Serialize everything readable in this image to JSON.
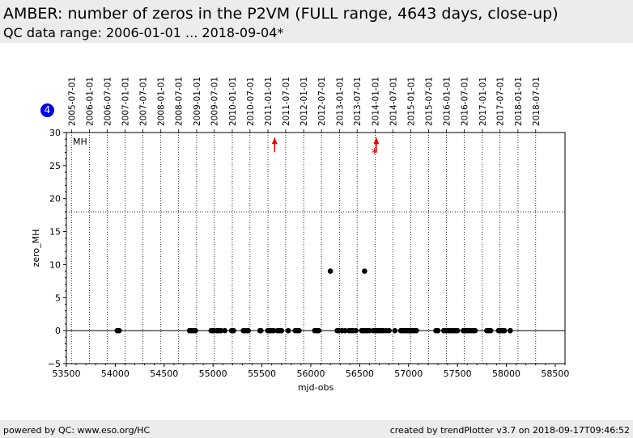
{
  "header": {
    "title": "AMBER: number of zeros in the P2VM (FULL range, 4643 days, close-up)",
    "subtitle": "QC data range: 2006-01-01 ... 2018-09-04*"
  },
  "badge": {
    "value": "4"
  },
  "footer": {
    "left": "powered by QC: www.eso.org/HC",
    "right": "created by trendPlotter v3.7 on 2018-09-17T09:46:52"
  },
  "colors": {
    "points": "#000000",
    "outliers": "#ee0000",
    "header_bg": "#ececec",
    "badge": "#0000ee"
  },
  "chart_data": {
    "type": "scatter",
    "xlabel": "mjd-obs",
    "ylabel": "zero_MH",
    "xlim": [
      53500,
      58600
    ],
    "ylim": [
      -5,
      30
    ],
    "x_ticks": [
      53500,
      54000,
      54500,
      55000,
      55500,
      56000,
      56500,
      57000,
      57500,
      58000,
      58500
    ],
    "y_ticks": [
      -5,
      0,
      5,
      10,
      15,
      20,
      25,
      30
    ],
    "reference_lines": [
      0,
      18
    ],
    "grid": "vertical dotted lines at date ticks",
    "panel_label": "MH",
    "date_ticks": [
      {
        "label": "2005-07-01",
        "mjd": 53552
      },
      {
        "label": "2006-01-01",
        "mjd": 53736
      },
      {
        "label": "2006-07-01",
        "mjd": 53917
      },
      {
        "label": "2007-01-01",
        "mjd": 54101
      },
      {
        "label": "2007-07-01",
        "mjd": 54282
      },
      {
        "label": "2008-01-01",
        "mjd": 54466
      },
      {
        "label": "2008-07-01",
        "mjd": 54648
      },
      {
        "label": "2009-01-01",
        "mjd": 54832
      },
      {
        "label": "2009-07-01",
        "mjd": 55013
      },
      {
        "label": "2010-01-01",
        "mjd": 55197
      },
      {
        "label": "2010-07-01",
        "mjd": 55378
      },
      {
        "label": "2011-01-01",
        "mjd": 55562
      },
      {
        "label": "2011-07-01",
        "mjd": 55743
      },
      {
        "label": "2012-01-01",
        "mjd": 55927
      },
      {
        "label": "2012-07-01",
        "mjd": 56109
      },
      {
        "label": "2013-01-01",
        "mjd": 56293
      },
      {
        "label": "2013-07-01",
        "mjd": 56474
      },
      {
        "label": "2014-01-01",
        "mjd": 56658
      },
      {
        "label": "2014-07-01",
        "mjd": 56839
      },
      {
        "label": "2015-01-01",
        "mjd": 57023
      },
      {
        "label": "2015-07-01",
        "mjd": 57204
      },
      {
        "label": "2016-01-01",
        "mjd": 57388
      },
      {
        "label": "2016-07-01",
        "mjd": 57570
      },
      {
        "label": "2017-01-01",
        "mjd": 57754
      },
      {
        "label": "2017-07-01",
        "mjd": 57935
      },
      {
        "label": "2018-01-01",
        "mjd": 58119
      },
      {
        "label": "2018-07-01",
        "mjd": 58300
      }
    ],
    "series": [
      {
        "points": [
          [
            54020,
            0
          ],
          [
            54030,
            0
          ],
          [
            54040,
            0
          ],
          [
            54760,
            0
          ],
          [
            54780,
            0
          ],
          [
            54800,
            0
          ],
          [
            54820,
            0
          ],
          [
            54980,
            0
          ],
          [
            54995,
            0
          ],
          [
            55010,
            0
          ],
          [
            55040,
            0
          ],
          [
            55060,
            0
          ],
          [
            55080,
            0
          ],
          [
            55120,
            0
          ],
          [
            55190,
            0
          ],
          [
            55210,
            0
          ],
          [
            55310,
            0
          ],
          [
            55330,
            0
          ],
          [
            55350,
            0
          ],
          [
            55360,
            0
          ],
          [
            55480,
            0
          ],
          [
            55490,
            0
          ],
          [
            55560,
            0
          ],
          [
            55580,
            0
          ],
          [
            55600,
            0
          ],
          [
            55620,
            0
          ],
          [
            55660,
            0
          ],
          [
            55680,
            0
          ],
          [
            55700,
            0
          ],
          [
            55770,
            0
          ],
          [
            55840,
            0
          ],
          [
            55860,
            0
          ],
          [
            55880,
            0
          ],
          [
            56040,
            0
          ],
          [
            56060,
            0
          ],
          [
            56080,
            0
          ],
          [
            56200,
            9
          ],
          [
            56270,
            0
          ],
          [
            56290,
            0
          ],
          [
            56320,
            0
          ],
          [
            56350,
            0
          ],
          [
            56390,
            0
          ],
          [
            56410,
            0
          ],
          [
            56430,
            0
          ],
          [
            56460,
            0
          ],
          [
            56520,
            0
          ],
          [
            56540,
            0
          ],
          [
            56550,
            9
          ],
          [
            56560,
            0
          ],
          [
            56580,
            0
          ],
          [
            56600,
            0
          ],
          [
            56640,
            0
          ],
          [
            56660,
            0
          ],
          [
            56680,
            0
          ],
          [
            56700,
            0
          ],
          [
            56720,
            0
          ],
          [
            56740,
            0
          ],
          [
            56770,
            0
          ],
          [
            56800,
            0
          ],
          [
            56860,
            0
          ],
          [
            56920,
            0
          ],
          [
            56940,
            0
          ],
          [
            56960,
            0
          ],
          [
            56980,
            0
          ],
          [
            57000,
            0
          ],
          [
            57010,
            0
          ],
          [
            57020,
            0
          ],
          [
            57040,
            0
          ],
          [
            57060,
            0
          ],
          [
            57080,
            0
          ],
          [
            57280,
            0
          ],
          [
            57300,
            0
          ],
          [
            57360,
            0
          ],
          [
            57380,
            0
          ],
          [
            57400,
            0
          ],
          [
            57420,
            0
          ],
          [
            57440,
            0
          ],
          [
            57460,
            0
          ],
          [
            57480,
            0
          ],
          [
            57500,
            0
          ],
          [
            57560,
            0
          ],
          [
            57580,
            0
          ],
          [
            57600,
            0
          ],
          [
            57620,
            0
          ],
          [
            57640,
            0
          ],
          [
            57660,
            0
          ],
          [
            57680,
            0
          ],
          [
            57800,
            0
          ],
          [
            57820,
            0
          ],
          [
            57840,
            0
          ],
          [
            57920,
            0
          ],
          [
            57940,
            0
          ],
          [
            57960,
            0
          ],
          [
            57980,
            0
          ],
          [
            58040,
            0
          ]
        ]
      },
      {
        "name": "out of range",
        "arrows": [
          [
            55630,
            28.5
          ],
          [
            56670,
            28.5
          ]
        ],
        "stars": [
          [
            56650,
            27
          ]
        ]
      }
    ]
  }
}
